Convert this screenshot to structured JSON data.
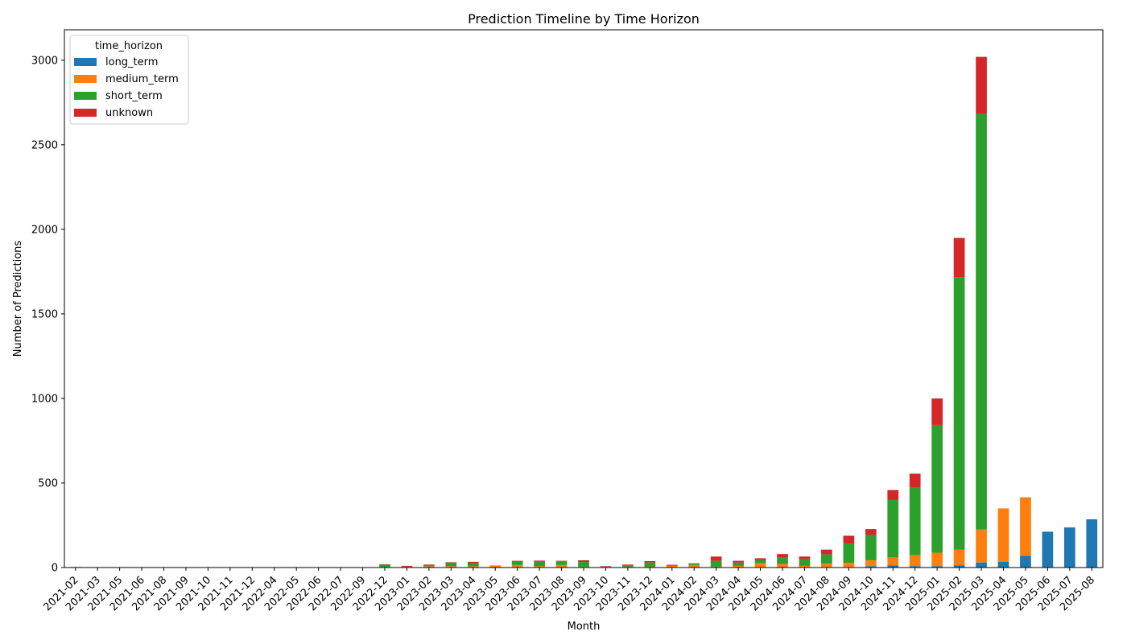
{
  "chart_data": {
    "type": "bar",
    "stacked": true,
    "title": "Prediction Timeline by Time Horizon",
    "xlabel": "Month",
    "ylabel": "Number of Predictions",
    "ylim": [
      0,
      3180
    ],
    "yticks": [
      0,
      500,
      1000,
      1500,
      2000,
      2500,
      3000
    ],
    "grid": false,
    "legend": {
      "title": "time_horizon",
      "placement": "top-left"
    },
    "categories": [
      "2021-02",
      "2021-03",
      "2021-05",
      "2021-06",
      "2021-08",
      "2021-09",
      "2021-10",
      "2021-11",
      "2021-12",
      "2022-04",
      "2022-05",
      "2022-06",
      "2022-07",
      "2022-09",
      "2022-12",
      "2023-01",
      "2023-02",
      "2023-03",
      "2023-04",
      "2023-05",
      "2023-06",
      "2023-07",
      "2023-08",
      "2023-09",
      "2023-10",
      "2023-11",
      "2023-12",
      "2024-01",
      "2024-02",
      "2024-03",
      "2024-04",
      "2024-05",
      "2024-06",
      "2024-07",
      "2024-08",
      "2024-09",
      "2024-10",
      "2024-11",
      "2024-12",
      "2025-01",
      "2025-02",
      "2025-03",
      "2025-04",
      "2025-05",
      "2025-06",
      "2025-07",
      "2025-08"
    ],
    "series": [
      {
        "name": "long_term",
        "color": "#1f77b4",
        "values": [
          0,
          0,
          0,
          0,
          0,
          0,
          0,
          0,
          0,
          0,
          0,
          0,
          0,
          0,
          0,
          0,
          0,
          0,
          0,
          0,
          0,
          0,
          0,
          0,
          0,
          0,
          0,
          0,
          0,
          0,
          0,
          0,
          0,
          0,
          3,
          3,
          8,
          12,
          8,
          8,
          12,
          30,
          35,
          70,
          212,
          237,
          285
        ]
      },
      {
        "name": "medium_term",
        "color": "#ff7f0e",
        "values": [
          0,
          0,
          0,
          0,
          0,
          0,
          0,
          0,
          0,
          0,
          0,
          0,
          0,
          0,
          3,
          3,
          8,
          8,
          8,
          10,
          15,
          8,
          15,
          5,
          4,
          5,
          5,
          10,
          15,
          5,
          10,
          25,
          20,
          10,
          20,
          25,
          35,
          48,
          65,
          80,
          95,
          195,
          315,
          345,
          0,
          0,
          0
        ]
      },
      {
        "name": "short_term",
        "color": "#2ca02c",
        "values": [
          0,
          0,
          0,
          0,
          0,
          0,
          2,
          2,
          2,
          2,
          0,
          0,
          0,
          0,
          14,
          2,
          8,
          22,
          18,
          2,
          20,
          30,
          22,
          28,
          2,
          10,
          25,
          5,
          5,
          35,
          20,
          20,
          40,
          40,
          55,
          115,
          150,
          340,
          400,
          755,
          1610,
          2460,
          0,
          0,
          0,
          0,
          0
        ]
      },
      {
        "name": "unknown",
        "color": "#d62728",
        "values": [
          3,
          0,
          0,
          0,
          0,
          0,
          0,
          0,
          0,
          0,
          0,
          2,
          0,
          0,
          2,
          5,
          2,
          2,
          8,
          0,
          5,
          3,
          3,
          10,
          3,
          3,
          8,
          2,
          5,
          25,
          10,
          10,
          20,
          15,
          28,
          45,
          35,
          58,
          82,
          157,
          232,
          335,
          0,
          0,
          0,
          0,
          0
        ]
      }
    ]
  }
}
